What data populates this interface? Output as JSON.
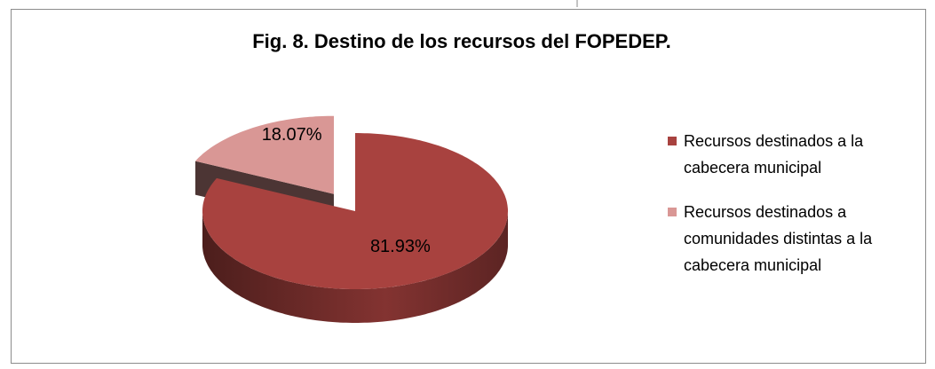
{
  "chart_data": {
    "type": "pie3d",
    "title": "Fig. 8. Destino de los recursos del FOPEDEP.",
    "categories": [
      "Recursos destinados a la cabecera municipal",
      "Recursos destinados a comunidades distintas a la cabecera municipal"
    ],
    "values": [
      81.93,
      18.07
    ],
    "value_labels": [
      "81.93%",
      "18.07%"
    ],
    "colors": [
      "#a8423f",
      "#d99795"
    ],
    "legend": "right"
  }
}
